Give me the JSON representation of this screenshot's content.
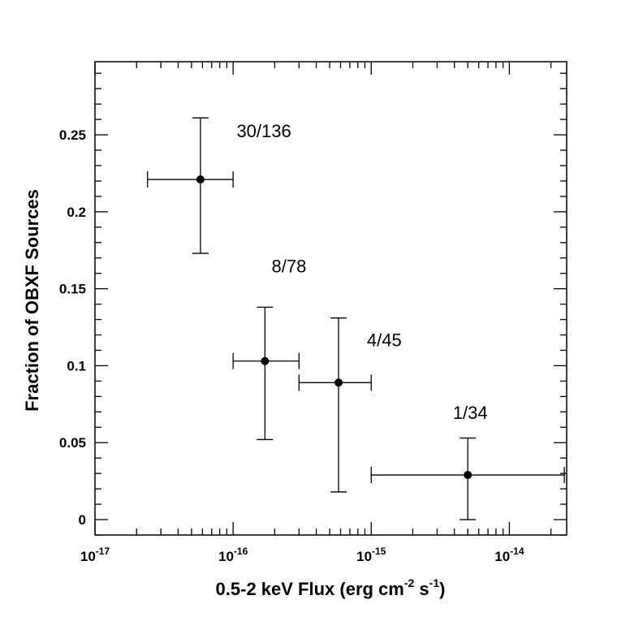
{
  "chart_data": {
    "type": "scatter",
    "title": "",
    "xlabel": "0.5-2 keV Flux (erg cm",
    "xlabel_sup1": "-2",
    "xlabel_mid": " s",
    "xlabel_sup2": "-1",
    "xlabel_end": ")",
    "ylabel": "Fraction of OBXF Sources",
    "x_scale": "log",
    "xlim": [
      1e-17,
      2.6e-14
    ],
    "ylim": [
      -0.01,
      0.2975
    ],
    "x_ticks": [
      {
        "value": 1e-17,
        "base": "10",
        "exp": "-17"
      },
      {
        "value": 1e-16,
        "base": "10",
        "exp": "-16"
      },
      {
        "value": 1e-15,
        "base": "10",
        "exp": "-15"
      },
      {
        "value": 1e-14,
        "base": "10",
        "exp": "-14"
      }
    ],
    "y_ticks": [
      {
        "value": 0,
        "label": "0"
      },
      {
        "value": 0.05,
        "label": "0.05"
      },
      {
        "value": 0.1,
        "label": "0.1"
      },
      {
        "value": 0.15,
        "label": "0.15"
      },
      {
        "value": 0.2,
        "label": "0.2"
      },
      {
        "value": 0.25,
        "label": "0.25"
      }
    ],
    "grid": false,
    "points": [
      {
        "x": 5.8e-17,
        "y": 0.221,
        "x_low": 2.4e-17,
        "x_high": 1e-16,
        "y_low": 0.173,
        "y_high": 0.261,
        "label": "30/136",
        "label_x": 1.06e-16,
        "label_y": 0.2485
      },
      {
        "x": 1.7e-16,
        "y": 0.103,
        "x_low": 1e-16,
        "x_high": 3e-16,
        "y_low": 0.052,
        "y_high": 0.138,
        "label": "8/78",
        "label_x": 1.9e-16,
        "label_y": 0.1605
      },
      {
        "x": 5.8e-16,
        "y": 0.089,
        "x_low": 3e-16,
        "x_high": 1e-15,
        "y_low": 0.018,
        "y_high": 0.131,
        "label": "4/45",
        "label_x": 9.3e-16,
        "label_y": 0.1125
      },
      {
        "x": 5e-15,
        "y": 0.029,
        "x_low": 1e-15,
        "x_high": 2.5e-14,
        "y_low": 0.0,
        "y_high": 0.053,
        "label": "1/34",
        "label_x": 3.9e-15,
        "label_y": 0.0655
      }
    ]
  }
}
